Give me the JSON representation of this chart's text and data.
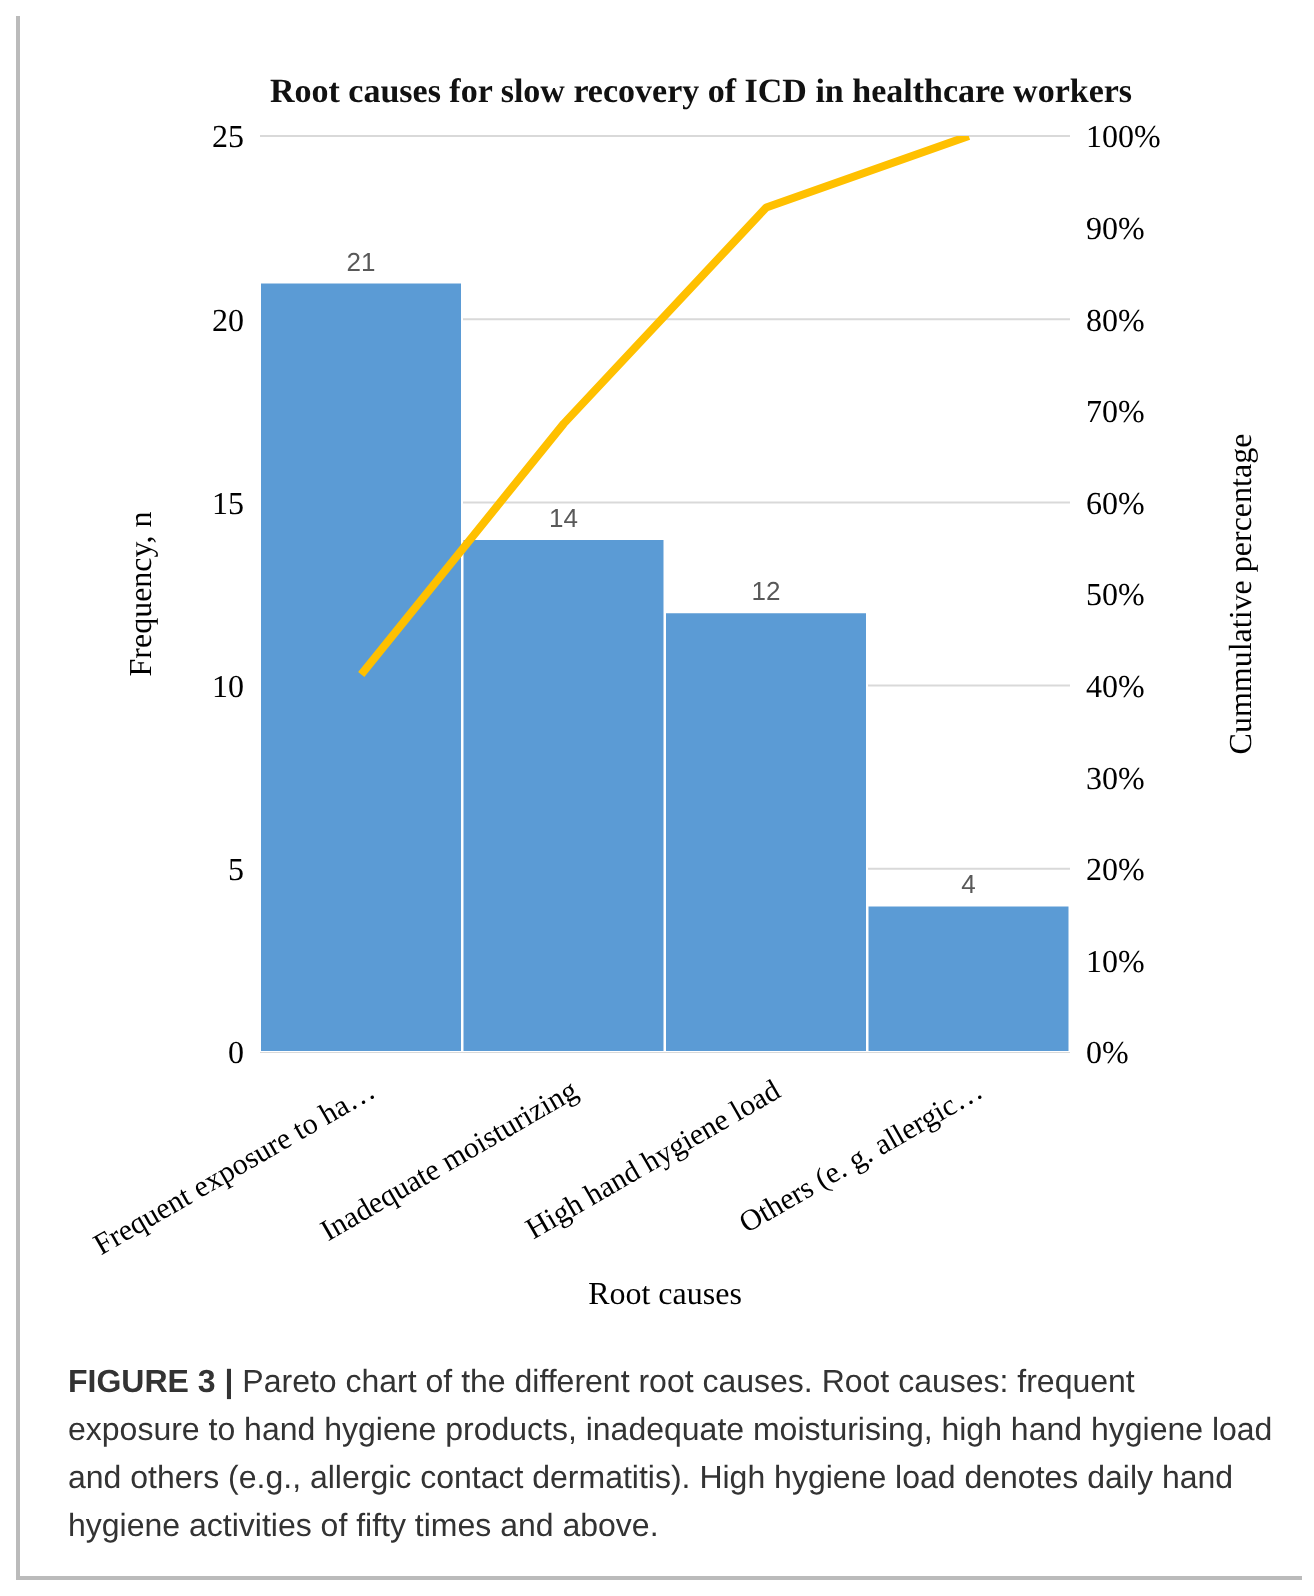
{
  "chart_data": {
    "type": "bar",
    "title": "Root causes for slow recovery of ICD in healthcare workers",
    "xlabel": "Root causes",
    "ylabel": "Frequency, n",
    "y2label": "Cummulative percentage",
    "categories": [
      "Frequent exposure to ha…",
      "Inadequate moisturizing",
      "High hand hygiene load",
      "Others (e. g. allergic…"
    ],
    "series": [
      {
        "color": "#5b9bd5",
        "values": [
          21,
          14,
          12,
          4
        ],
        "value_labels": [
          "21",
          "14",
          "12",
          "4"
        ]
      },
      {
        "type": "line",
        "axis": "y2",
        "color": "#ffc000",
        "values": [
          41.2,
          68.6,
          92.2,
          100
        ]
      }
    ],
    "ylim": [
      0,
      25
    ],
    "yticks": [
      0,
      5,
      10,
      15,
      20,
      25
    ],
    "y2lim": [
      0,
      100
    ],
    "y2ticks": [
      {
        "value": 0,
        "label": "0%"
      },
      {
        "value": 10,
        "label": "10%"
      },
      {
        "value": 20,
        "label": "20%"
      },
      {
        "value": 30,
        "label": "30%"
      },
      {
        "value": 40,
        "label": "40%"
      },
      {
        "value": 50,
        "label": "50%"
      },
      {
        "value": 60,
        "label": "60%"
      },
      {
        "value": 70,
        "label": "70%"
      },
      {
        "value": 80,
        "label": "80%"
      },
      {
        "value": 90,
        "label": "90%"
      },
      {
        "value": 100,
        "label": "100%"
      }
    ],
    "grid": "y",
    "legend": false,
    "marker": "none",
    "line_style": "solid",
    "annotations": [
      "FIGURE 3 |",
      "Pareto chart of the different root causes. Root causes: frequent exposure to hand hygiene products, inadequate moisturising, high hand hygiene load and others (e.g., allergic contact dermatitis). High hygiene load denotes daily hand hygiene activities of fifty times and above."
    ]
  }
}
